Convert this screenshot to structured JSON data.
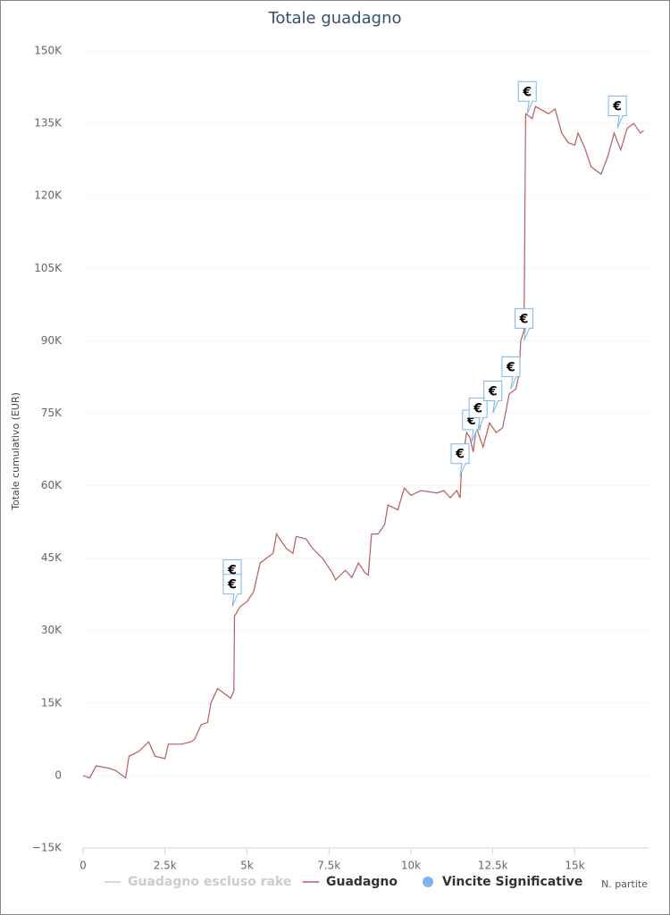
{
  "chart_data": {
    "type": "line",
    "title": "Totale guadagno",
    "ylabel": "Totale cumulativo (EUR)",
    "xlabel": "N. partite",
    "xlim": [
      0,
      17250
    ],
    "ylim": [
      -15000,
      150000
    ],
    "xticks": [
      0,
      {
        "value": 2500,
        "label": "2.5k"
      },
      {
        "value": 5000,
        "label": "5k"
      },
      {
        "value": 7500,
        "label": "7.5k"
      },
      {
        "value": 10000,
        "label": "10k"
      },
      {
        "value": 12500,
        "label": "12.5k"
      },
      {
        "value": 15000,
        "label": "15k"
      }
    ],
    "yticks": [
      {
        "value": -15000,
        "label": "−15K"
      },
      0,
      {
        "value": 15000,
        "label": "15K"
      },
      {
        "value": 30000,
        "label": "30K"
      },
      {
        "value": 45000,
        "label": "45K"
      },
      {
        "value": 60000,
        "label": "60K"
      },
      {
        "value": 75000,
        "label": "75K"
      },
      {
        "value": 90000,
        "label": "90K"
      },
      {
        "value": 105000,
        "label": "105K"
      },
      {
        "value": 120000,
        "label": "120K"
      },
      {
        "value": 135000,
        "label": "135K"
      },
      {
        "value": 150000,
        "label": "150K"
      }
    ],
    "grid": true,
    "legend": "bottom",
    "flag_text": "€",
    "series": [
      {
        "name": "Guadagno escluso rake",
        "kind": "line",
        "visible": false,
        "color": "#cccccc",
        "x": [],
        "values": []
      },
      {
        "name": "Guadagno",
        "kind": "line",
        "visible": true,
        "color": "#b85c5c",
        "x": [
          0,
          200,
          400,
          800,
          1000,
          1300,
          1400,
          1700,
          2000,
          2200,
          2500,
          2600,
          3000,
          3300,
          3400,
          3600,
          3800,
          3900,
          4100,
          4300,
          4500,
          4600,
          4620,
          4800,
          5000,
          5200,
          5400,
          5600,
          5800,
          5900,
          6200,
          6400,
          6500,
          6800,
          7000,
          7300,
          7600,
          7700,
          8000,
          8200,
          8400,
          8600,
          8700,
          8800,
          9000,
          9200,
          9300,
          9600,
          9800,
          10000,
          10300,
          10800,
          11000,
          11200,
          11400,
          11500,
          11550,
          11700,
          11800,
          11900,
          12000,
          12200,
          12400,
          12600,
          12800,
          13000,
          13200,
          13300,
          13350,
          13450,
          13500,
          13700,
          13800,
          14200,
          14400,
          14600,
          14800,
          15000,
          15100,
          15300,
          15500,
          15800,
          16000,
          16200,
          16400,
          16600,
          16800,
          17000,
          17100
        ],
        "values": [
          0,
          -500,
          2000,
          1500,
          1000,
          -500,
          4000,
          5000,
          7000,
          4000,
          3500,
          6500,
          6500,
          7000,
          7500,
          10500,
          11000,
          15000,
          18000,
          17000,
          16000,
          17500,
          33000,
          35000,
          36000,
          38000,
          44000,
          45000,
          46000,
          50000,
          47000,
          46000,
          49500,
          49000,
          47000,
          45000,
          42000,
          40500,
          42500,
          41000,
          44000,
          42000,
          41500,
          50000,
          50000,
          52000,
          56000,
          55000,
          59500,
          58000,
          59000,
          58500,
          59000,
          57500,
          59000,
          57500,
          64000,
          71000,
          70000,
          67000,
          72000,
          68000,
          73000,
          71000,
          72000,
          79000,
          80000,
          83000,
          90000,
          92000,
          137000,
          136000,
          138500,
          137000,
          138000,
          133000,
          131000,
          130500,
          133000,
          130000,
          126000,
          124500,
          128000,
          133000,
          129500,
          134000,
          135000,
          133000,
          133500
        ]
      },
      {
        "name": "Vincite Significative",
        "kind": "flags",
        "visible": true,
        "color": "#7cb5ec",
        "x": [
          4550,
          4550,
          11500,
          11850,
          12050,
          12500,
          13050,
          13450,
          13550,
          16300
        ],
        "values": [
          38000,
          35000,
          62000,
          69000,
          71500,
          75000,
          80000,
          90000,
          137000,
          134000
        ]
      }
    ]
  }
}
